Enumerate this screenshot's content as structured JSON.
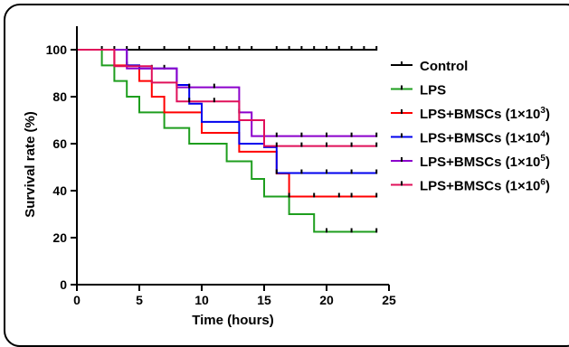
{
  "chart_data": {
    "type": "line",
    "step": true,
    "xlabel": "Time (hours)",
    "ylabel": "Survival rate (%)",
    "xlim": [
      0,
      25
    ],
    "ylim": [
      0,
      110
    ],
    "xticks": [
      0,
      5,
      10,
      15,
      20,
      25
    ],
    "yticks": [
      0,
      20,
      40,
      60,
      80,
      100
    ],
    "grid": false,
    "legend_position": "right",
    "series": [
      {
        "name": "Control",
        "color": "#000000",
        "steps": [
          [
            0,
            100
          ],
          [
            24,
            100
          ]
        ],
        "censor": [
          2,
          3,
          4,
          5,
          7,
          9,
          11,
          12,
          13,
          14,
          16,
          17,
          18,
          19,
          20,
          21,
          22,
          23,
          24
        ]
      },
      {
        "name": "LPS",
        "color": "#1e9e1e",
        "steps": [
          [
            0,
            100
          ],
          [
            2,
            93.3
          ],
          [
            3,
            86.7
          ],
          [
            4,
            80
          ],
          [
            5,
            73.3
          ],
          [
            7,
            66.7
          ],
          [
            9,
            60
          ],
          [
            11,
            60
          ],
          [
            12,
            52.5
          ],
          [
            14,
            45
          ],
          [
            15,
            37.5
          ],
          [
            17,
            30
          ],
          [
            19,
            22.5
          ],
          [
            24,
            22.5
          ]
        ],
        "censor": [
          20,
          22,
          24
        ]
      },
      {
        "name": "LPS+BMSCs (1×10³)",
        "base": "LPS+BMSCs (1×10",
        "sup": "3",
        "tail": ")",
        "color": "#ff0000",
        "steps": [
          [
            0,
            100
          ],
          [
            3,
            93.3
          ],
          [
            5,
            86.7
          ],
          [
            6,
            80
          ],
          [
            7,
            73.3
          ],
          [
            10,
            64.6
          ],
          [
            13,
            56.6
          ],
          [
            16,
            47.3
          ],
          [
            17,
            37.5
          ],
          [
            24,
            37.5
          ]
        ],
        "censor": [
          17,
          19,
          21,
          22,
          24
        ]
      },
      {
        "name": "LPS+BMSCs (1×10⁴)",
        "base": "LPS+BMSCs (1×10",
        "sup": "4",
        "tail": ")",
        "color": "#0000ee",
        "steps": [
          [
            0,
            100
          ],
          [
            4,
            93.3
          ],
          [
            5,
            92
          ],
          [
            8,
            85
          ],
          [
            9,
            77
          ],
          [
            10,
            69.3
          ],
          [
            13,
            60
          ],
          [
            15,
            58.5
          ],
          [
            16,
            47.5
          ],
          [
            24,
            47.5
          ]
        ],
        "censor": [
          4,
          6,
          7,
          16,
          18,
          20,
          22,
          24
        ]
      },
      {
        "name": "LPS+BMSCs (1×10⁵)",
        "base": "LPS+BMSCs (1×10",
        "sup": "5",
        "tail": ")",
        "color": "#8b00cc",
        "steps": [
          [
            0,
            100
          ],
          [
            4,
            92
          ],
          [
            8,
            84
          ],
          [
            13,
            73.3
          ],
          [
            14,
            63.2
          ],
          [
            24,
            63.2
          ]
        ],
        "censor": [
          9,
          11,
          13,
          16,
          18,
          20,
          22,
          24
        ]
      },
      {
        "name": "LPS+BMSCs (1×10⁶)",
        "base": "LPS+BMSCs (1×10",
        "sup": "6",
        "tail": ")",
        "color": "#e0105a",
        "steps": [
          [
            0,
            100
          ],
          [
            3,
            93
          ],
          [
            6,
            86
          ],
          [
            8,
            78
          ],
          [
            13,
            70
          ],
          [
            15,
            59
          ],
          [
            24,
            59
          ]
        ],
        "censor": [
          9,
          11,
          16,
          18,
          20,
          22,
          24
        ]
      }
    ]
  }
}
